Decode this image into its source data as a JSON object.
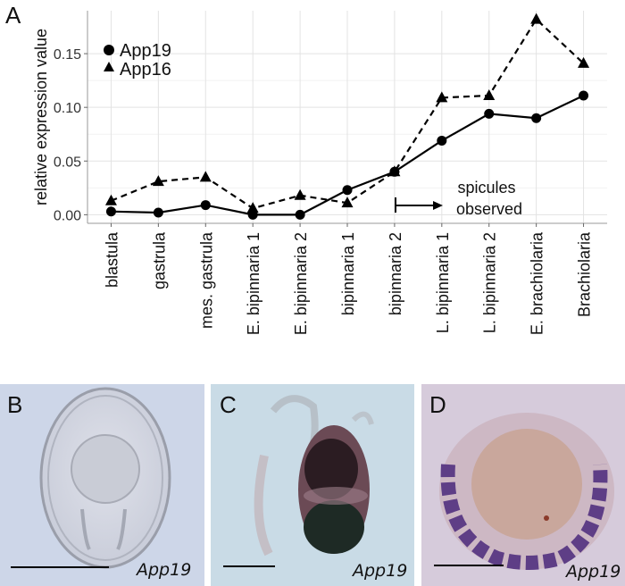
{
  "panel_labels": {
    "a": "A",
    "b": "B",
    "c": "C",
    "d": "D"
  },
  "chart_data": {
    "type": "line",
    "title": "",
    "xlabel": "",
    "ylabel": "relative expression value",
    "categories": [
      "blastula",
      "gastrula",
      "mes. gastrula",
      "E. bipinnaria 1",
      "E. bipinnaria 2",
      "bipinnaria 1",
      "bipinnaria 2",
      "L. bipinnaria 1",
      "L. bipinnaria 2",
      "E. brachiolaria",
      "Brachiolaria"
    ],
    "ylim": [
      -0.008,
      0.19
    ],
    "yticks": [
      0.0,
      0.05,
      0.1,
      0.15
    ],
    "ytick_labels": [
      "0.00",
      "0.05",
      "0.10",
      "0.15"
    ],
    "grid": true,
    "legend_position": "top-left",
    "series": [
      {
        "name": "App19",
        "marker": "circle",
        "line_style": "solid",
        "color": "#000000",
        "values": [
          0.003,
          0.002,
          0.009,
          0.0,
          0.0,
          0.023,
          0.04,
          0.069,
          0.094,
          0.09,
          0.111
        ]
      },
      {
        "name": "App16",
        "marker": "triangle",
        "line_style": "dashed",
        "color": "#000000",
        "values": [
          0.013,
          0.031,
          0.035,
          0.006,
          0.018,
          0.011,
          0.04,
          0.109,
          0.111,
          0.182,
          0.141
        ]
      }
    ],
    "annotation": {
      "lines": [
        "spicules",
        "observed"
      ],
      "arrow_from_category": "bipinnaria 2"
    }
  },
  "micrographs": [
    {
      "panel": "B",
      "gene": "App19",
      "background": "#cdd6e8"
    },
    {
      "panel": "C",
      "gene": "App19",
      "background": "#c9dbe6"
    },
    {
      "panel": "D",
      "gene": "App19",
      "background": "#d6cbdb"
    }
  ]
}
